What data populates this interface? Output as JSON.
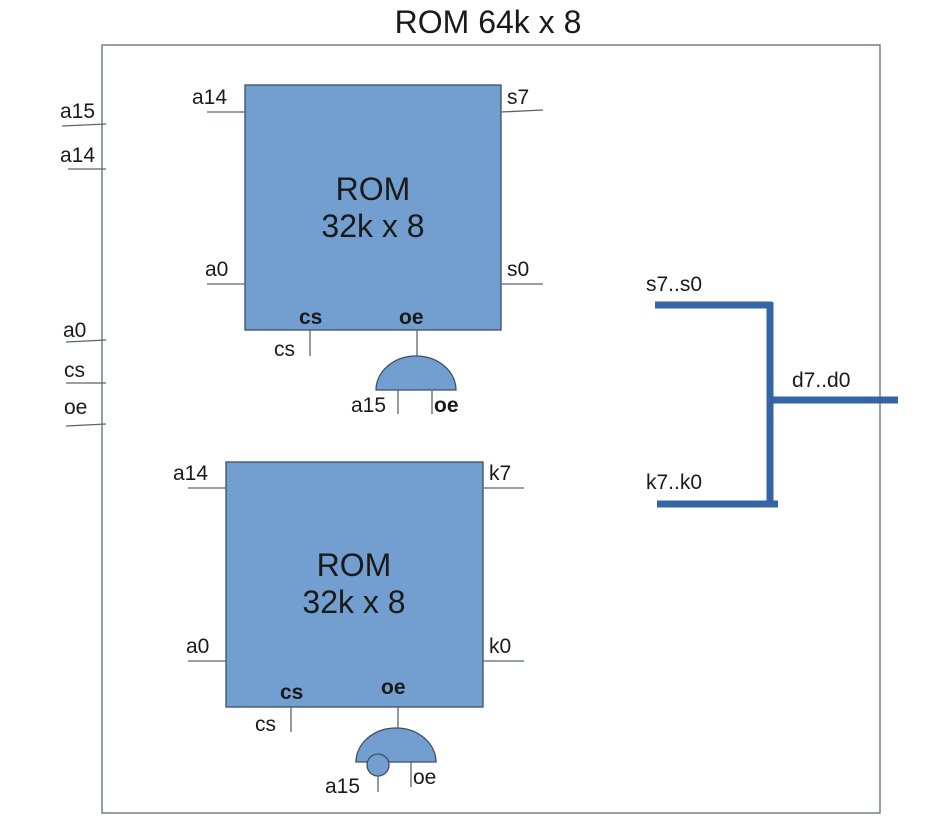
{
  "title": "ROM 64k x 8",
  "outer_inputs": [
    "a15",
    "a14",
    "a0",
    "cs",
    "oe"
  ],
  "rom_top": {
    "title_line1": "ROM",
    "title_line2": "32k x 8",
    "pin_a14": "a14",
    "pin_a0": "a0",
    "pin_out_hi": "s7",
    "pin_out_lo": "s0",
    "pin_cs": "cs",
    "pin_oe": "oe",
    "ext_cs": "cs",
    "gate_in_a15": "a15",
    "gate_in_oe": "oe"
  },
  "rom_bottom": {
    "title_line1": "ROM",
    "title_line2": "32k x 8",
    "pin_a14": "a14",
    "pin_a0": "a0",
    "pin_out_hi": "k7",
    "pin_out_lo": "k0",
    "pin_cs": "cs",
    "pin_oe": "oe",
    "ext_cs": "cs",
    "gate_in_a15": "a15",
    "gate_in_oe": "oe"
  },
  "bus": {
    "top_label": "s7..s0",
    "bottom_label": "k7..k0",
    "out_label": "d7..d0"
  },
  "colors": {
    "chip_fill": "#729fcf",
    "bus": "#3465a4"
  }
}
